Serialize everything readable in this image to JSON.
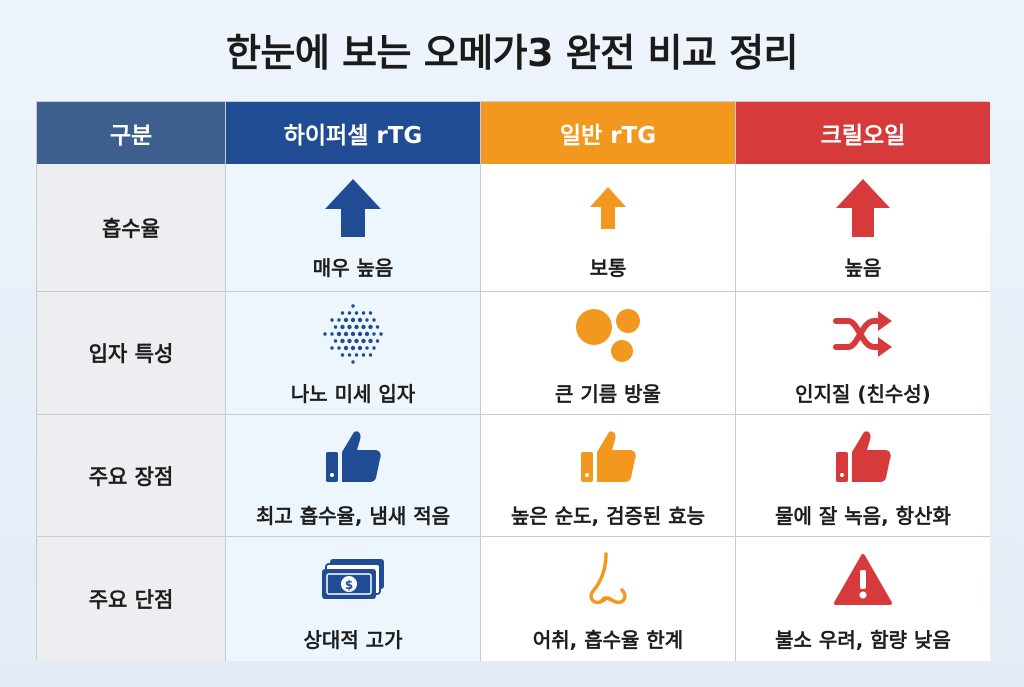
{
  "title": "한눈에 보는 오메가3 완전 비교 정리",
  "colors": {
    "hyperselect": "#1f4c93",
    "regular": "#f2981e",
    "krill": "#d63a3a",
    "category_header": "#3d5f8e"
  },
  "headers": [
    "구분",
    "하이퍼셀 rTG",
    "일반 rTG",
    "크릴오일"
  ],
  "rows": [
    {
      "label": "흡수율",
      "cells": [
        {
          "text": "매우 높음",
          "icon": "large-up-arrow-icon"
        },
        {
          "text": "보통",
          "icon": "small-up-arrow-icon"
        },
        {
          "text": "높음",
          "icon": "up-arrow-icon"
        }
      ]
    },
    {
      "label": "입자 특성",
      "cells": [
        {
          "text": "나노 미세 입자",
          "icon": "nano-particles-icon"
        },
        {
          "text": "큰 기름 방울",
          "icon": "oil-droplets-icon"
        },
        {
          "text": "인지질 (친수성)",
          "icon": "shuffle-icon"
        }
      ]
    },
    {
      "label": "주요 장점",
      "cells": [
        {
          "text": "최고 흡수율, 냄새 적음",
          "icon": "thumbs-up-icon"
        },
        {
          "text": "높은 순도, 검증된 효능",
          "icon": "thumbs-up-icon"
        },
        {
          "text": "물에 잘 녹음, 항산화",
          "icon": "thumbs-up-icon"
        }
      ]
    },
    {
      "label": "주요 단점",
      "cells": [
        {
          "text": "상대적 고가",
          "icon": "money-icon"
        },
        {
          "text": "어취, 흡수율 한계",
          "icon": "nose-icon"
        },
        {
          "text": "불소 우려, 함량 낮음",
          "icon": "warning-icon"
        }
      ]
    }
  ]
}
